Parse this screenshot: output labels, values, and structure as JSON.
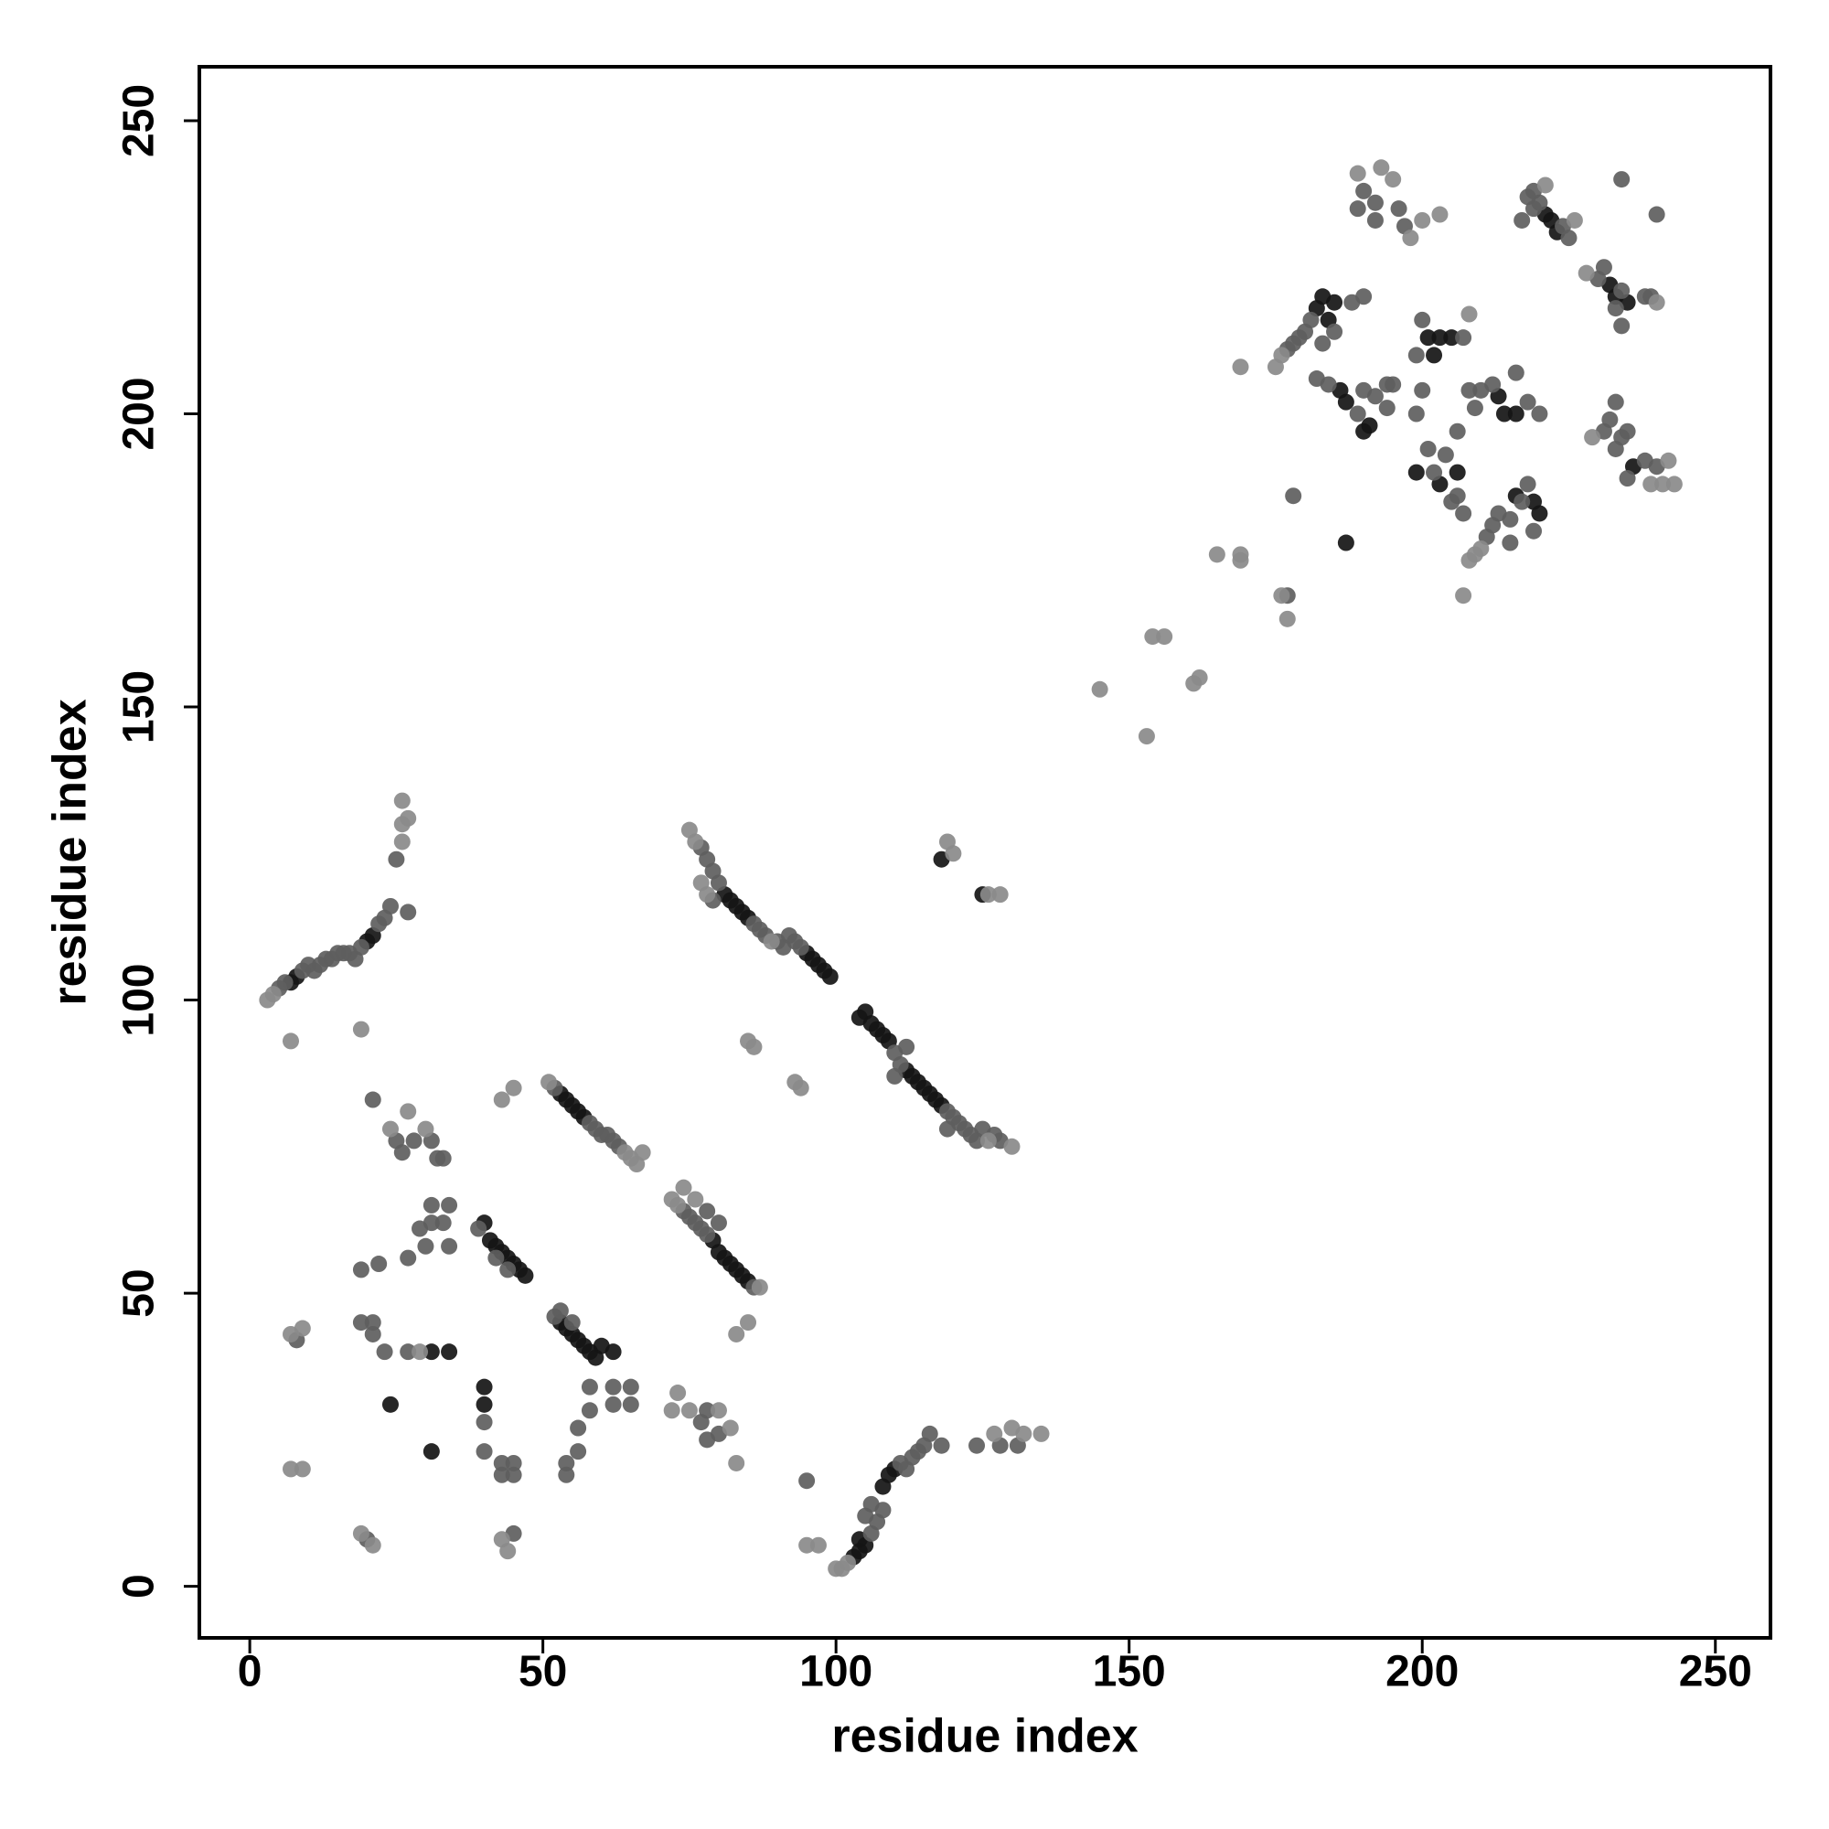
{
  "chart_data": {
    "type": "scatter",
    "xlabel": "residue index",
    "ylabel": "residue index",
    "xlim": [
      -8.6,
      259.4
    ],
    "ylim": [
      -8.8,
      259.2
    ],
    "xticks": [
      0,
      50,
      100,
      150,
      200,
      250
    ],
    "yticks": [
      0,
      50,
      100,
      150,
      200,
      250
    ],
    "series": [
      {
        "color": "#151515",
        "x": [
          7,
          8,
          20,
          21,
          53,
          54,
          55,
          56,
          57,
          81,
          82,
          83,
          84,
          85,
          95,
          96,
          97,
          98,
          99,
          104,
          105,
          106,
          107,
          108,
          109,
          112,
          113,
          114,
          115,
          116,
          117,
          118,
          40,
          41,
          42,
          43,
          44,
          45,
          46,
          47,
          53,
          54,
          55,
          56,
          57,
          58,
          59,
          60,
          62,
          79,
          80,
          81,
          82,
          83,
          84,
          85,
          103,
          104,
          105,
          104,
          108,
          109,
          110,
          24,
          31,
          31,
          34,
          40,
          40,
          118,
          125,
          183,
          185,
          184,
          182,
          186,
          187,
          190,
          191,
          187,
          199,
          201,
          203,
          205,
          202,
          203,
          206,
          213,
          214,
          216,
          216,
          219,
          220,
          221,
          222,
          223,
          232,
          233,
          235,
          236
        ],
        "y": [
          103,
          104,
          110,
          111,
          84,
          83,
          82,
          81,
          80,
          118,
          117,
          116,
          115,
          114,
          108,
          107,
          106,
          105,
          104,
          97,
          98,
          96,
          95,
          94,
          93,
          88,
          87,
          86,
          85,
          84,
          83,
          82,
          62,
          59,
          58,
          57,
          56,
          55,
          54,
          53,
          45,
          44,
          43,
          42,
          41,
          40,
          39,
          41,
          40,
          59,
          57,
          56,
          55,
          54,
          53,
          52,
          5,
          6,
          7,
          8,
          17,
          19,
          20,
          31,
          23,
          40,
          40,
          34,
          31,
          124,
          118,
          220,
          219,
          216,
          218,
          204,
          202,
          197,
          198,
          178,
          190,
          213,
          213,
          213,
          210,
          188,
          190,
          203,
          200,
          200,
          186,
          185,
          183,
          234,
          233,
          231,
          222,
          220,
          219,
          191
        ]
      },
      {
        "color": "#5e5e5e",
        "x": [
          5,
          6,
          9,
          10,
          11,
          12,
          13,
          14,
          15,
          16,
          17,
          18,
          19,
          22,
          23,
          24,
          25,
          27,
          52,
          58,
          59,
          60,
          61,
          62,
          63,
          77,
          78,
          79,
          79,
          80,
          86,
          87,
          88,
          90,
          91,
          92,
          93,
          94,
          110,
          111,
          119,
          120,
          121,
          122,
          123,
          124,
          125,
          127,
          128,
          110,
          112,
          119,
          39,
          42,
          44,
          52,
          53,
          55,
          74,
          75,
          76,
          77,
          78,
          78,
          80,
          86,
          106,
          107,
          106,
          105,
          108,
          111,
          112,
          113,
          114,
          115,
          116,
          118,
          8,
          19,
          21,
          21,
          19,
          22,
          23,
          20,
          27,
          27,
          30,
          31,
          31,
          33,
          34,
          34,
          29,
          25,
          26,
          28,
          31,
          32,
          33,
          21,
          40,
          40,
          43,
          43,
          45,
          45,
          45,
          54,
          54,
          56,
          56,
          58,
          58,
          62,
          62,
          65,
          65,
          77,
          78,
          78,
          80,
          95,
          124,
          128,
          131,
          177,
          177,
          178,
          179,
          180,
          181,
          185,
          183,
          182,
          184,
          189,
          190,
          192,
          194,
          194,
          195,
          188,
          190,
          178,
          190,
          192,
          196,
          197,
          189,
          192,
          199,
          200,
          200,
          199,
          207,
          201,
          202,
          204,
          206,
          207,
          206,
          205,
          211,
          212,
          213,
          215,
          217,
          218,
          219,
          215,
          208,
          210,
          212,
          218,
          220,
          216,
          209,
          218,
          219,
          220,
          224,
          225,
          219,
          217,
          230,
          231,
          234,
          238,
          239,
          233,
          234,
          234,
          240,
          231,
          232,
          233,
          234,
          235,
          235,
          238,
          240,
          233
        ],
        "y": [
          102,
          103,
          105,
          106,
          105,
          106,
          107,
          107,
          108,
          108,
          108,
          107,
          109,
          113,
          114,
          116,
          124,
          115,
          85,
          79,
          78,
          77,
          77,
          76,
          75,
          126,
          124,
          122,
          117,
          120,
          113,
          112,
          111,
          110,
          109,
          111,
          110,
          109,
          91,
          89,
          81,
          80,
          79,
          78,
          77,
          76,
          78,
          77,
          76,
          87,
          92,
          78,
          61,
          56,
          54,
          46,
          47,
          45,
          64,
          63,
          62,
          61,
          60,
          64,
          62,
          51,
          9,
          11,
          14,
          12,
          13,
          21,
          20,
          22,
          23,
          24,
          26,
          24,
          42,
          45,
          43,
          45,
          54,
          55,
          40,
          8,
          56,
          40,
          58,
          62,
          65,
          62,
          65,
          58,
          61,
          76,
          74,
          76,
          76,
          73,
          73,
          83,
          28,
          23,
          21,
          19,
          19,
          21,
          9,
          19,
          21,
          23,
          27,
          30,
          34,
          31,
          34,
          31,
          34,
          28,
          30,
          25,
          26,
          18,
          24,
          24,
          24,
          211,
          169,
          212,
          213,
          214,
          216,
          214,
          212,
          206,
          205,
          200,
          204,
          203,
          205,
          201,
          205,
          219,
          220,
          186,
          238,
          236,
          235,
          232,
          235,
          233,
          200,
          204,
          216,
          210,
          213,
          194,
          190,
          193,
          186,
          183,
          197,
          185,
          179,
          181,
          183,
          182,
          185,
          188,
          180,
          178,
          204,
          204,
          205,
          202,
          200,
          207,
          201,
          237,
          238,
          236,
          232,
          230,
          235,
          233,
          223,
          225,
          221,
          220,
          220,
          218,
          215,
          240,
          234,
          197,
          199,
          194,
          196,
          197,
          189,
          192,
          191,
          202
        ]
      },
      {
        "color": "#8a8a8a",
        "x": [
          3,
          4,
          26,
          26,
          27,
          26,
          7,
          19,
          51,
          64,
          65,
          66,
          67,
          75,
          76,
          77,
          78,
          89,
          126,
          130,
          72,
          73,
          74,
          76,
          87,
          100,
          101,
          102,
          7,
          9,
          7,
          9,
          19,
          21,
          29,
          30,
          27,
          24,
          43,
          45,
          43,
          44,
          73,
          72,
          75,
          80,
          82,
          83,
          83,
          85,
          85,
          86,
          93,
          94,
          95,
          97,
          119,
          120,
          126,
          128,
          127,
          130,
          132,
          135,
          145,
          154,
          156,
          153,
          162,
          161,
          165,
          169,
          169,
          176,
          177,
          169,
          175,
          176,
          189,
          193,
          195,
          198,
          200,
          203,
          207,
          208,
          209,
          210,
          221,
          226,
          228,
          229,
          239,
          241,
          242,
          243,
          240,
          208
        ],
        "y": [
          100,
          101,
          127,
          130,
          131,
          134,
          93,
          95,
          86,
          74,
          73,
          72,
          74,
          129,
          127,
          120,
          118,
          110,
          76,
          75,
          66,
          65,
          68,
          66,
          51,
          3,
          3,
          4,
          43,
          44,
          20,
          20,
          9,
          7,
          40,
          78,
          81,
          78,
          83,
          85,
          8,
          6,
          33,
          30,
          30,
          30,
          27,
          21,
          43,
          45,
          93,
          92,
          86,
          85,
          7,
          7,
          127,
          125,
          118,
          118,
          26,
          27,
          26,
          26,
          153,
          162,
          162,
          145,
          155,
          154,
          176,
          175,
          176,
          169,
          165,
          208,
          208,
          210,
          241,
          242,
          240,
          230,
          233,
          234,
          169,
          175,
          176,
          177,
          239,
          233,
          224,
          196,
          188,
          188,
          192,
          188,
          219,
          217
        ]
      }
    ]
  }
}
